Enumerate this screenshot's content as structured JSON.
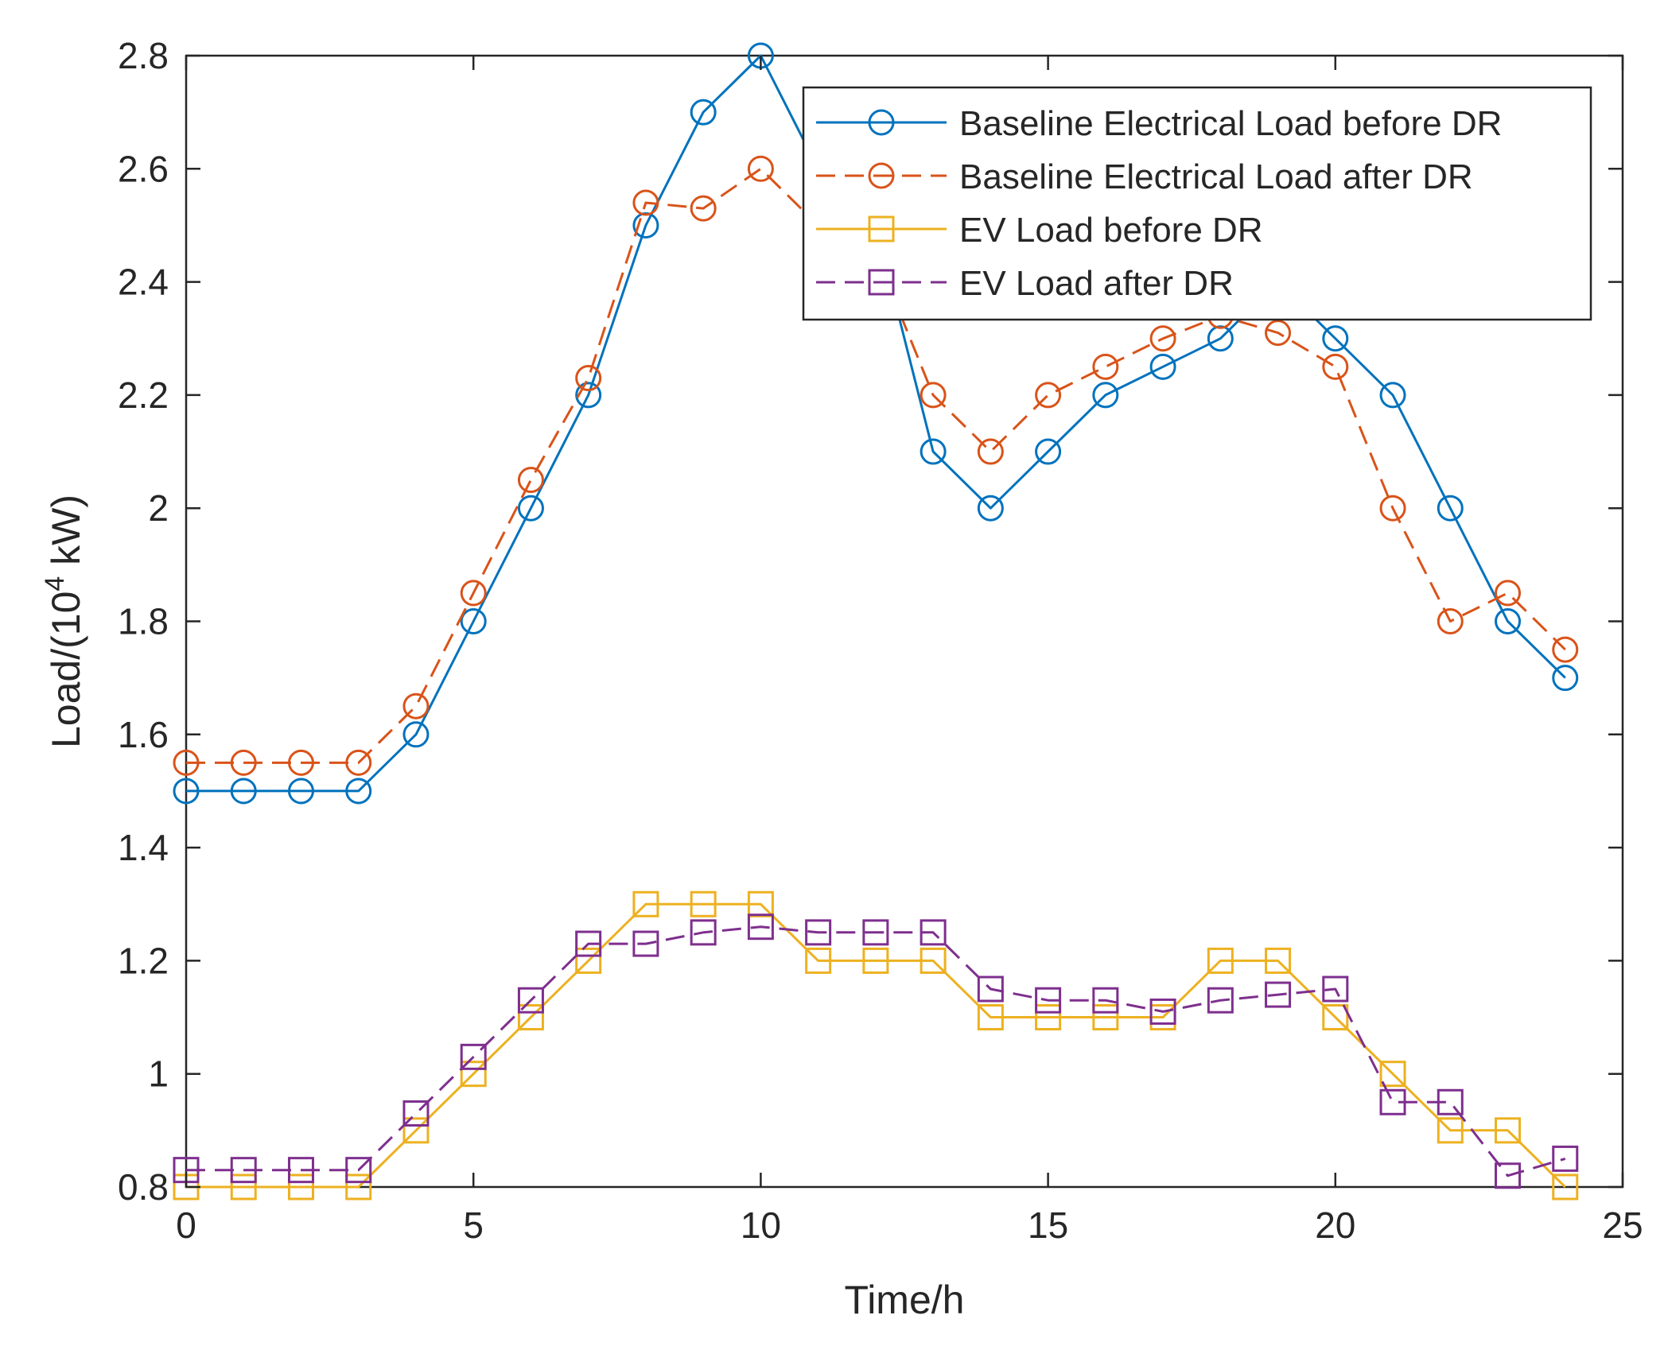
{
  "chart_data": {
    "type": "line",
    "title": "",
    "xlabel": "Time/h",
    "ylabel": {
      "prefix": "Load/(10",
      "superscript": "4",
      "suffix": " kW)"
    },
    "xlim": [
      0,
      25
    ],
    "ylim": [
      0.8,
      2.8
    ],
    "xticks": [
      0,
      5,
      10,
      15,
      20,
      25
    ],
    "xtick_labels": [
      "0",
      "5",
      "10",
      "15",
      "20",
      "25"
    ],
    "yticks": [
      0.8,
      1.0,
      1.2,
      1.4,
      1.6,
      1.8,
      2.0,
      2.2,
      2.4,
      2.6,
      2.8
    ],
    "ytick_labels": [
      "0.8",
      "1",
      "1.2",
      "1.4",
      "1.6",
      "1.8",
      "2",
      "2.2",
      "2.4",
      "2.6",
      "2.8"
    ],
    "grid": false,
    "legend_position": "top-right",
    "x": [
      0,
      1,
      2,
      3,
      4,
      5,
      6,
      7,
      8,
      9,
      10,
      11,
      12,
      13,
      14,
      15,
      16,
      17,
      18,
      19,
      20,
      21,
      22,
      23,
      24
    ],
    "series": [
      {
        "name": "Baseline Electrical Load before DR",
        "color": "#0072BD",
        "line_style": "solid",
        "marker": "circle",
        "values": [
          1.5,
          1.5,
          1.5,
          1.5,
          1.6,
          1.8,
          2.0,
          2.2,
          2.5,
          2.7,
          2.8,
          2.6,
          2.5,
          2.1,
          2.0,
          2.1,
          2.2,
          2.25,
          2.3,
          2.4,
          2.3,
          2.2,
          2.0,
          1.8,
          1.7
        ]
      },
      {
        "name": "Baseline Electrical Load after DR",
        "color": "#D95319",
        "line_style": "dashed",
        "marker": "circle",
        "values": [
          1.55,
          1.55,
          1.55,
          1.55,
          1.65,
          1.85,
          2.05,
          2.23,
          2.54,
          2.53,
          2.6,
          2.5,
          2.45,
          2.2,
          2.1,
          2.2,
          2.25,
          2.3,
          2.34,
          2.31,
          2.25,
          2.0,
          1.8,
          1.85,
          1.75
        ]
      },
      {
        "name": "EV Load before DR",
        "color": "#EDB120",
        "line_style": "solid",
        "marker": "square",
        "values": [
          0.8,
          0.8,
          0.8,
          0.8,
          0.9,
          1.0,
          1.1,
          1.2,
          1.3,
          1.3,
          1.3,
          1.2,
          1.2,
          1.2,
          1.1,
          1.1,
          1.1,
          1.1,
          1.2,
          1.2,
          1.1,
          1.0,
          0.9,
          0.9,
          0.8
        ]
      },
      {
        "name": "EV Load after DR",
        "color": "#7E2F8E",
        "line_style": "dashed",
        "marker": "square",
        "values": [
          0.83,
          0.83,
          0.83,
          0.83,
          0.93,
          1.03,
          1.13,
          1.23,
          1.23,
          1.25,
          1.26,
          1.25,
          1.25,
          1.25,
          1.15,
          1.13,
          1.13,
          1.11,
          1.13,
          1.14,
          1.15,
          0.95,
          0.95,
          0.82,
          0.85
        ]
      }
    ]
  }
}
